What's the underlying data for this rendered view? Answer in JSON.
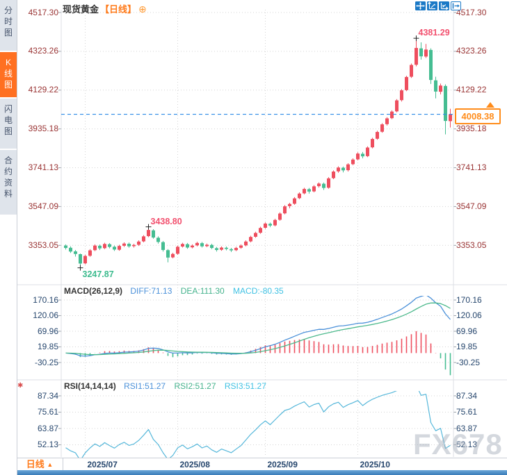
{
  "sidebar": {
    "items": [
      {
        "label": "分时图",
        "active": false
      },
      {
        "label": "K线图",
        "active": true
      },
      {
        "label": "闪电图",
        "active": false
      },
      {
        "label": "合约资料",
        "active": false
      }
    ]
  },
  "header": {
    "symbol": "现货黄金",
    "period_tag": "【日线】",
    "add_button": "⊕"
  },
  "toolbar": {
    "icons": [
      {
        "name": "pan-crosshair"
      },
      {
        "name": "zoom-y-axis"
      },
      {
        "name": "zoom-x-axis"
      },
      {
        "name": "exit-chart"
      }
    ]
  },
  "bottom_bar": {
    "period_label": "日线",
    "dropdown_arrow": "▲"
  },
  "watermark": "FX678",
  "colors": {
    "up": "#EE4E5E",
    "down": "#45BD92",
    "accent_orange": "#FF7A1A",
    "diff_line": "#4A90D9",
    "dea_line": "#4CB98C",
    "rsi_line": "#55B7DA",
    "axis_price_text": "#993333",
    "axis_indicator_text": "#26466D",
    "dashed_price_line": "#2E8BE6",
    "grid": "#D9D9D9"
  },
  "chart_data": [
    {
      "type": "candlestick",
      "title": "现货黄金",
      "period": "日线",
      "y_tick_labels": [
        "4517.30",
        "4323.26",
        "4129.22",
        "3935.18",
        "3741.13",
        "3547.09",
        "3353.05"
      ],
      "x_ticks": [
        {
          "label": "2025/07",
          "candle_index": 4
        },
        {
          "label": "2025/08",
          "candle_index": 23
        },
        {
          "label": "2025/09",
          "candle_index": 41
        },
        {
          "label": "2025/10",
          "candle_index": 60
        }
      ],
      "last_price": "4008.38",
      "annotations": [
        {
          "type": "high",
          "label": "4381.29",
          "candle_index": 72,
          "price": 4381.29
        },
        {
          "type": "swing-high",
          "label": "3438.80",
          "candle_index": 17,
          "price": 3438.8
        },
        {
          "type": "low",
          "label": "3247.87",
          "candle_index": 3,
          "price": 3247.87
        }
      ],
      "ohlc": [
        [
          3352,
          3358,
          3332,
          3340
        ],
        [
          3341,
          3348,
          3315,
          3322
        ],
        [
          3323,
          3330,
          3297,
          3310
        ],
        [
          3309,
          3312,
          3247.87,
          3262
        ],
        [
          3263,
          3305,
          3258,
          3300
        ],
        [
          3301,
          3334,
          3296,
          3328
        ],
        [
          3329,
          3358,
          3324,
          3352
        ],
        [
          3351,
          3357,
          3330,
          3338
        ],
        [
          3339,
          3366,
          3334,
          3360
        ],
        [
          3359,
          3364,
          3338,
          3345
        ],
        [
          3346,
          3352,
          3325,
          3332
        ],
        [
          3331,
          3356,
          3326,
          3350
        ],
        [
          3351,
          3368,
          3345,
          3362
        ],
        [
          3361,
          3367,
          3341,
          3348
        ],
        [
          3349,
          3361,
          3342,
          3355
        ],
        [
          3356,
          3378,
          3350,
          3372
        ],
        [
          3373,
          3404,
          3368,
          3398
        ],
        [
          3399,
          3438.8,
          3394,
          3430
        ],
        [
          3428,
          3434,
          3386,
          3392
        ],
        [
          3391,
          3398,
          3362,
          3370
        ],
        [
          3369,
          3375,
          3322,
          3330
        ],
        [
          3329,
          3334,
          3268,
          3292
        ],
        [
          3293,
          3316,
          3288,
          3310
        ],
        [
          3311,
          3352,
          3306,
          3346
        ],
        [
          3347,
          3366,
          3342,
          3360
        ],
        [
          3359,
          3365,
          3336,
          3342
        ],
        [
          3343,
          3358,
          3338,
          3352
        ],
        [
          3353,
          3371,
          3348,
          3365
        ],
        [
          3364,
          3370,
          3342,
          3348
        ],
        [
          3349,
          3362,
          3344,
          3356
        ],
        [
          3355,
          3361,
          3334,
          3340
        ],
        [
          3339,
          3345,
          3322,
          3330
        ],
        [
          3331,
          3348,
          3326,
          3342
        ],
        [
          3341,
          3347,
          3328,
          3335
        ],
        [
          3334,
          3340,
          3320,
          3328
        ],
        [
          3329,
          3346,
          3324,
          3340
        ],
        [
          3341,
          3358,
          3336,
          3352
        ],
        [
          3353,
          3378,
          3348,
          3372
        ],
        [
          3373,
          3401,
          3368,
          3395
        ],
        [
          3396,
          3421,
          3391,
          3415
        ],
        [
          3416,
          3446,
          3411,
          3440
        ],
        [
          3441,
          3468,
          3436,
          3462
        ],
        [
          3461,
          3467,
          3444,
          3452
        ],
        [
          3453,
          3486,
          3448,
          3480
        ],
        [
          3481,
          3518,
          3476,
          3512
        ],
        [
          3513,
          3554,
          3508,
          3548
        ],
        [
          3549,
          3566,
          3538,
          3560
        ],
        [
          3561,
          3594,
          3556,
          3588
        ],
        [
          3589,
          3618,
          3584,
          3612
        ],
        [
          3613,
          3641,
          3608,
          3635
        ],
        [
          3634,
          3640,
          3612,
          3622
        ],
        [
          3623,
          3654,
          3618,
          3648
        ],
        [
          3649,
          3668,
          3642,
          3662
        ],
        [
          3661,
          3667,
          3630,
          3640
        ],
        [
          3641,
          3694,
          3636,
          3688
        ],
        [
          3689,
          3728,
          3684,
          3722
        ],
        [
          3723,
          3748,
          3716,
          3742
        ],
        [
          3741,
          3747,
          3718,
          3728
        ],
        [
          3729,
          3764,
          3722,
          3758
        ],
        [
          3759,
          3788,
          3754,
          3782
        ],
        [
          3783,
          3818,
          3778,
          3812
        ],
        [
          3811,
          3820,
          3788,
          3798
        ],
        [
          3799,
          3848,
          3794,
          3842
        ],
        [
          3843,
          3891,
          3838,
          3885
        ],
        [
          3886,
          3926,
          3881,
          3920
        ],
        [
          3921,
          3964,
          3916,
          3958
        ],
        [
          3959,
          3994,
          3952,
          3988
        ],
        [
          3989,
          4028,
          3984,
          4022
        ],
        [
          4023,
          4084,
          4018,
          4078
        ],
        [
          4079,
          4134,
          4072,
          4128
        ],
        [
          4129,
          4201,
          4124,
          4195
        ],
        [
          4196,
          4262,
          4190,
          4255
        ],
        [
          4256,
          4381.29,
          4248,
          4340
        ],
        [
          4338,
          4368,
          4282,
          4298
        ],
        [
          4297,
          4360,
          4290,
          4332
        ],
        [
          4330,
          4338,
          4160,
          4180
        ],
        [
          4178,
          4196,
          4088,
          4122
        ],
        [
          4121,
          4162,
          4108,
          4152
        ],
        [
          4150,
          4158,
          3908,
          3975
        ],
        [
          3974,
          4036,
          3942,
          4008.38
        ]
      ]
    },
    {
      "type": "macd",
      "title": "MACD(26,12,9)",
      "params": [
        26,
        12,
        9
      ],
      "diff_label": "DIFF:71.13",
      "dea_label": "DEA:111.30",
      "macd_label": "MACD:-80.35",
      "diff": 71.13,
      "dea": 111.3,
      "macd": -80.35,
      "y_tick_labels": [
        "170.16",
        "120.06",
        "69.96",
        "19.85",
        "-30.25"
      ]
    },
    {
      "type": "rsi",
      "title": "RSI(14,14,14)",
      "params": [
        14,
        14,
        14
      ],
      "rsi1_label": "RSI1:51.27",
      "rsi2_label": "RSI2:51.27",
      "rsi3_label": "RSI3:51.27",
      "rsi1": 51.27,
      "rsi2": 51.27,
      "rsi3": 51.27,
      "y_tick_labels": [
        "87.34",
        "75.61",
        "63.87",
        "52.13"
      ]
    }
  ]
}
